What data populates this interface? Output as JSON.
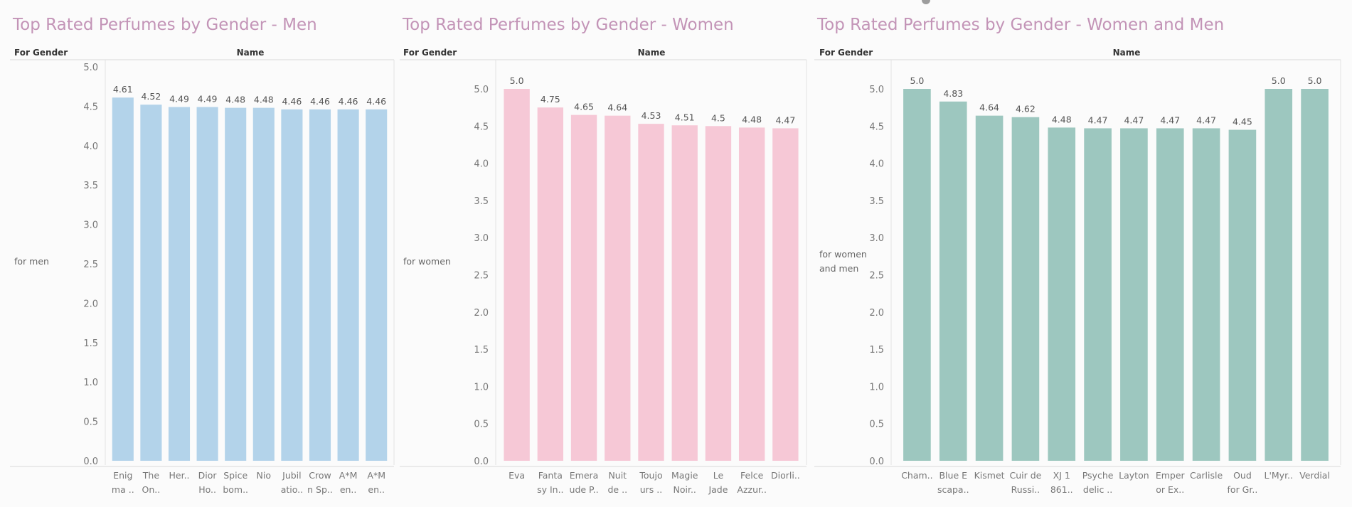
{
  "headers": {
    "row": "For Gender",
    "column": "Name"
  },
  "chart_data": [
    {
      "type": "bar",
      "title": "Top Rated Perfumes by Gender - Men",
      "row_label": [
        "for men"
      ],
      "color": "#b3d3ea",
      "categories": [
        "Enigma ..",
        "The On..",
        "Her..",
        "Dior Ho..",
        "Spice bom..",
        "Nio",
        "Jubilatio..",
        "Crown Sp..",
        "A*Men..",
        "A*Men.."
      ],
      "x_label_lines": [
        [
          "Enig",
          "ma .."
        ],
        [
          "The",
          "On.."
        ],
        [
          "Her.."
        ],
        [
          "Dior",
          "Ho.."
        ],
        [
          "Spice",
          "bom.."
        ],
        [
          "Nio"
        ],
        [
          "Jubil",
          "atio.."
        ],
        [
          "Crow",
          "n Sp.."
        ],
        [
          "A*M",
          "en.."
        ],
        [
          "A*M",
          "en.."
        ]
      ],
      "values": [
        4.61,
        4.52,
        4.49,
        4.49,
        4.48,
        4.48,
        4.46,
        4.46,
        4.46,
        4.46
      ],
      "value_labels": [
        "4.61",
        "4.52",
        "4.49",
        "4.49",
        "4.48",
        "4.48",
        "4.46",
        "4.46",
        "4.46",
        "4.46"
      ],
      "yticks": [
        "0.0",
        "0.5",
        "1.0",
        "1.5",
        "2.0",
        "2.5",
        "3.0",
        "3.5",
        "4.0",
        "4.5",
        "5.0"
      ],
      "ylim": [
        0,
        5.0
      ],
      "grid": false
    },
    {
      "type": "bar",
      "title": "Top Rated Perfumes by Gender - Women",
      "row_label": [
        "for women"
      ],
      "color": "#f6c8d6",
      "categories": [
        "Eva",
        "Fantasy In..",
        "Emeraude P..",
        "Nuit de ..",
        "Toujours ..",
        "Magie Noir..",
        "Le Jade",
        "Felce Azzur..",
        "Diorli.."
      ],
      "x_label_lines": [
        [
          "Eva"
        ],
        [
          "Fanta",
          "sy In.."
        ],
        [
          "Emera",
          "ude P.."
        ],
        [
          "Nuit",
          "de .."
        ],
        [
          "Toujo",
          "urs .."
        ],
        [
          "Magie",
          "Noir.."
        ],
        [
          "Le",
          "Jade"
        ],
        [
          "Felce",
          "Azzur.."
        ],
        [
          "Diorli.."
        ]
      ],
      "values": [
        5.0,
        4.75,
        4.65,
        4.64,
        4.53,
        4.51,
        4.5,
        4.48,
        4.47
      ],
      "value_labels": [
        "5.0",
        "4.75",
        "4.65",
        "4.64",
        "4.53",
        "4.51",
        "4.5",
        "4.48",
        "4.47"
      ],
      "yticks": [
        "0.0",
        "0.5",
        "1.0",
        "1.5",
        "2.0",
        "2.5",
        "3.0",
        "3.5",
        "4.0",
        "4.5",
        "5.0"
      ],
      "ylim": [
        0,
        5.0
      ],
      "grid": false
    },
    {
      "type": "bar",
      "title": "Top Rated Perfumes by Gender - Women and Men",
      "row_label": [
        "for women",
        "and men"
      ],
      "color": "#9dc7bf",
      "categories": [
        "Cham..",
        "Blue Escapa..",
        "Kismet",
        "Cuir de Russi..",
        "XJ 1861..",
        "Psychedelic ..",
        "Layton",
        "Emperor Ex..",
        "Carlisle",
        "Oud for Gr..",
        "L'Myr..",
        "Verdial"
      ],
      "x_label_lines": [
        [
          "Cham.."
        ],
        [
          "Blue E",
          "scapa.."
        ],
        [
          "Kismet"
        ],
        [
          "Cuir de",
          "Russi.."
        ],
        [
          "XJ 1",
          "861.."
        ],
        [
          "Psyche",
          "delic .."
        ],
        [
          "Layton"
        ],
        [
          "Emper",
          "or Ex.."
        ],
        [
          "Carlisle"
        ],
        [
          "Oud",
          "for Gr.."
        ],
        [
          "L'Myr.."
        ],
        [
          "Verdial"
        ]
      ],
      "values": [
        5.0,
        4.83,
        4.64,
        4.62,
        4.48,
        4.47,
        4.47,
        4.47,
        4.47,
        4.45,
        5.0,
        5.0
      ],
      "value_labels": [
        "5.0",
        "4.83",
        "4.64",
        "4.62",
        "4.48",
        "4.47",
        "4.47",
        "4.47",
        "4.47",
        "4.45",
        "5.0",
        "5.0"
      ],
      "yticks": [
        "0.0",
        "0.5",
        "1.0",
        "1.5",
        "2.0",
        "2.5",
        "3.0",
        "3.5",
        "4.0",
        "4.5",
        "5.0"
      ],
      "ylim": [
        0,
        5.0
      ],
      "grid": false
    }
  ]
}
